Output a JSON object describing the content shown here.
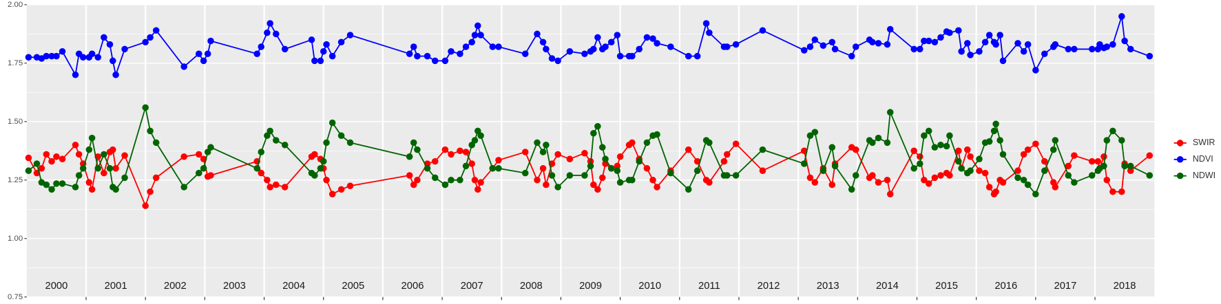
{
  "chart_data": {
    "type": "line",
    "x": [
      2000.03,
      2000.17,
      2000.25,
      2000.33,
      2000.42,
      2000.5,
      2000.6,
      2000.82,
      2000.88,
      2000.95,
      2001.05,
      2001.1,
      2001.2,
      2001.3,
      2001.4,
      2001.45,
      2001.5,
      2001.65,
      2002.0,
      2002.08,
      2002.18,
      2002.65,
      2002.9,
      2002.98,
      2003.05,
      2003.1,
      2003.88,
      2003.95,
      2004.05,
      2004.1,
      2004.2,
      2004.35,
      2004.8,
      2004.85,
      2004.95,
      2005.0,
      2005.05,
      2005.15,
      2005.3,
      2005.45,
      2006.45,
      2006.52,
      2006.58,
      2006.75,
      2006.88,
      2007.05,
      2007.15,
      2007.3,
      2007.4,
      2007.5,
      2007.55,
      2007.6,
      2007.65,
      2007.85,
      2007.95,
      2008.4,
      2008.6,
      2008.7,
      2008.75,
      2008.85,
      2008.95,
      2009.15,
      2009.4,
      2009.5,
      2009.55,
      2009.62,
      2009.7,
      2009.75,
      2009.85,
      2009.95,
      2010.0,
      2010.15,
      2010.2,
      2010.32,
      2010.45,
      2010.55,
      2010.62,
      2010.85,
      2011.15,
      2011.3,
      2011.45,
      2011.5,
      2011.75,
      2011.8,
      2011.95,
      2012.4,
      2013.1,
      2013.2,
      2013.28,
      2013.42,
      2013.57,
      2013.62,
      2013.9,
      2013.97,
      2014.2,
      2014.25,
      2014.35,
      2014.5,
      2014.55,
      2014.95,
      2015.05,
      2015.12,
      2015.2,
      2015.3,
      2015.4,
      2015.5,
      2015.55,
      2015.7,
      2015.75,
      2015.85,
      2015.9,
      2016.05,
      2016.15,
      2016.22,
      2016.3,
      2016.33,
      2016.4,
      2016.45,
      2016.7,
      2016.8,
      2016.87,
      2017.0,
      2017.15,
      2017.3,
      2017.33,
      2017.55,
      2017.65,
      2017.95,
      2018.05,
      2018.08,
      2018.15,
      2018.2,
      2018.3,
      2018.45,
      2018.5,
      2018.6,
      2018.92
    ],
    "series": [
      {
        "name": "SWIR",
        "color": "#ff0000",
        "values": [
          1.345,
          1.28,
          1.3,
          1.36,
          1.33,
          1.35,
          1.34,
          1.4,
          1.36,
          1.32,
          1.24,
          1.21,
          1.35,
          1.28,
          1.37,
          1.38,
          1.3,
          1.355,
          1.14,
          1.2,
          1.26,
          1.35,
          1.36,
          1.34,
          1.265,
          1.27,
          1.33,
          1.28,
          1.25,
          1.22,
          1.23,
          1.22,
          1.35,
          1.36,
          1.34,
          1.3,
          1.25,
          1.19,
          1.21,
          1.225,
          1.27,
          1.23,
          1.25,
          1.32,
          1.33,
          1.38,
          1.36,
          1.375,
          1.37,
          1.32,
          1.25,
          1.21,
          1.24,
          1.3,
          1.335,
          1.37,
          1.25,
          1.3,
          1.23,
          1.32,
          1.36,
          1.34,
          1.365,
          1.33,
          1.23,
          1.21,
          1.26,
          1.32,
          1.3,
          1.31,
          1.35,
          1.4,
          1.41,
          1.34,
          1.3,
          1.25,
          1.22,
          1.29,
          1.38,
          1.33,
          1.25,
          1.24,
          1.33,
          1.36,
          1.405,
          1.29,
          1.375,
          1.26,
          1.24,
          1.3,
          1.23,
          1.32,
          1.39,
          1.38,
          1.26,
          1.27,
          1.24,
          1.25,
          1.19,
          1.375,
          1.35,
          1.25,
          1.235,
          1.26,
          1.27,
          1.28,
          1.27,
          1.375,
          1.3,
          1.38,
          1.35,
          1.29,
          1.28,
          1.22,
          1.19,
          1.2,
          1.25,
          1.24,
          1.29,
          1.36,
          1.38,
          1.405,
          1.33,
          1.24,
          1.22,
          1.31,
          1.355,
          1.33,
          1.33,
          1.3,
          1.35,
          1.25,
          1.2,
          1.2,
          1.32,
          1.29,
          1.355
        ]
      },
      {
        "name": "NDVI",
        "color": "#0000ff",
        "values": [
          1.775,
          1.775,
          1.77,
          1.78,
          1.78,
          1.78,
          1.8,
          1.7,
          1.79,
          1.775,
          1.775,
          1.79,
          1.775,
          1.86,
          1.83,
          1.76,
          1.7,
          1.81,
          1.84,
          1.86,
          1.89,
          1.735,
          1.79,
          1.76,
          1.79,
          1.845,
          1.79,
          1.82,
          1.88,
          1.92,
          1.875,
          1.81,
          1.85,
          1.76,
          1.76,
          1.8,
          1.83,
          1.78,
          1.84,
          1.87,
          1.79,
          1.82,
          1.78,
          1.78,
          1.76,
          1.76,
          1.8,
          1.79,
          1.82,
          1.84,
          1.87,
          1.91,
          1.87,
          1.82,
          1.82,
          1.79,
          1.875,
          1.84,
          1.81,
          1.77,
          1.76,
          1.8,
          1.79,
          1.8,
          1.81,
          1.86,
          1.81,
          1.82,
          1.84,
          1.87,
          1.78,
          1.78,
          1.78,
          1.81,
          1.86,
          1.855,
          1.835,
          1.82,
          1.78,
          1.78,
          1.92,
          1.88,
          1.82,
          1.82,
          1.83,
          1.89,
          1.805,
          1.82,
          1.85,
          1.825,
          1.84,
          1.81,
          1.78,
          1.82,
          1.85,
          1.84,
          1.835,
          1.83,
          1.895,
          1.81,
          1.81,
          1.845,
          1.845,
          1.84,
          1.86,
          1.885,
          1.88,
          1.89,
          1.8,
          1.835,
          1.785,
          1.8,
          1.84,
          1.87,
          1.84,
          1.83,
          1.87,
          1.76,
          1.835,
          1.8,
          1.83,
          1.72,
          1.79,
          1.82,
          1.83,
          1.81,
          1.81,
          1.81,
          1.81,
          1.83,
          1.815,
          1.82,
          1.83,
          1.95,
          1.845,
          1.81,
          1.78
        ]
      },
      {
        "name": "NDWI",
        "color": "#006400",
        "values": [
          1.29,
          1.32,
          1.24,
          1.23,
          1.21,
          1.235,
          1.235,
          1.22,
          1.27,
          1.3,
          1.38,
          1.43,
          1.3,
          1.36,
          1.3,
          1.22,
          1.21,
          1.26,
          1.56,
          1.46,
          1.41,
          1.22,
          1.28,
          1.3,
          1.37,
          1.39,
          1.3,
          1.37,
          1.44,
          1.46,
          1.42,
          1.4,
          1.28,
          1.27,
          1.3,
          1.33,
          1.41,
          1.495,
          1.44,
          1.41,
          1.35,
          1.41,
          1.38,
          1.3,
          1.26,
          1.23,
          1.25,
          1.25,
          1.31,
          1.4,
          1.42,
          1.46,
          1.44,
          1.3,
          1.3,
          1.28,
          1.41,
          1.37,
          1.4,
          1.27,
          1.22,
          1.27,
          1.27,
          1.31,
          1.45,
          1.48,
          1.39,
          1.34,
          1.3,
          1.29,
          1.24,
          1.25,
          1.25,
          1.33,
          1.41,
          1.44,
          1.445,
          1.28,
          1.21,
          1.29,
          1.42,
          1.41,
          1.27,
          1.27,
          1.27,
          1.38,
          1.32,
          1.44,
          1.455,
          1.29,
          1.39,
          1.31,
          1.21,
          1.27,
          1.42,
          1.41,
          1.43,
          1.41,
          1.54,
          1.3,
          1.32,
          1.44,
          1.46,
          1.39,
          1.4,
          1.395,
          1.44,
          1.33,
          1.3,
          1.28,
          1.29,
          1.34,
          1.41,
          1.415,
          1.46,
          1.49,
          1.42,
          1.36,
          1.26,
          1.25,
          1.23,
          1.19,
          1.29,
          1.38,
          1.42,
          1.27,
          1.24,
          1.27,
          1.29,
          1.3,
          1.31,
          1.42,
          1.46,
          1.42,
          1.31,
          1.31,
          1.27
        ]
      }
    ],
    "xlim": [
      2000,
      2019
    ],
    "xticks": [
      {
        "value": 2000.5,
        "label": "2000"
      },
      {
        "value": 2001.5,
        "label": "2001"
      },
      {
        "value": 2002.5,
        "label": "2002"
      },
      {
        "value": 2003.5,
        "label": "2003"
      },
      {
        "value": 2004.5,
        "label": "2004"
      },
      {
        "value": 2005.5,
        "label": "2005"
      },
      {
        "value": 2006.5,
        "label": "2006"
      },
      {
        "value": 2007.5,
        "label": "2007"
      },
      {
        "value": 2008.5,
        "label": "2008"
      },
      {
        "value": 2009.5,
        "label": "2009"
      },
      {
        "value": 2010.5,
        "label": "2010"
      },
      {
        "value": 2011.5,
        "label": "2011"
      },
      {
        "value": 2012.5,
        "label": "2012"
      },
      {
        "value": 2013.5,
        "label": "2013"
      },
      {
        "value": 2014.5,
        "label": "2014"
      },
      {
        "value": 2015.5,
        "label": "2015"
      },
      {
        "value": 2016.5,
        "label": "2016"
      },
      {
        "value": 2017.5,
        "label": "2017"
      },
      {
        "value": 2018.5,
        "label": "2018"
      }
    ],
    "ylim": [
      0.75,
      2.0
    ],
    "yticks": [
      {
        "value": 0.75,
        "label": "0.75"
      },
      {
        "value": 1.0,
        "label": "1.00"
      },
      {
        "value": 1.25,
        "label": "1.25"
      },
      {
        "value": 1.5,
        "label": "1.50"
      },
      {
        "value": 1.75,
        "label": "1.75"
      },
      {
        "value": 2.0,
        "label": "2.00"
      }
    ],
    "grid": true,
    "legend": "right"
  }
}
